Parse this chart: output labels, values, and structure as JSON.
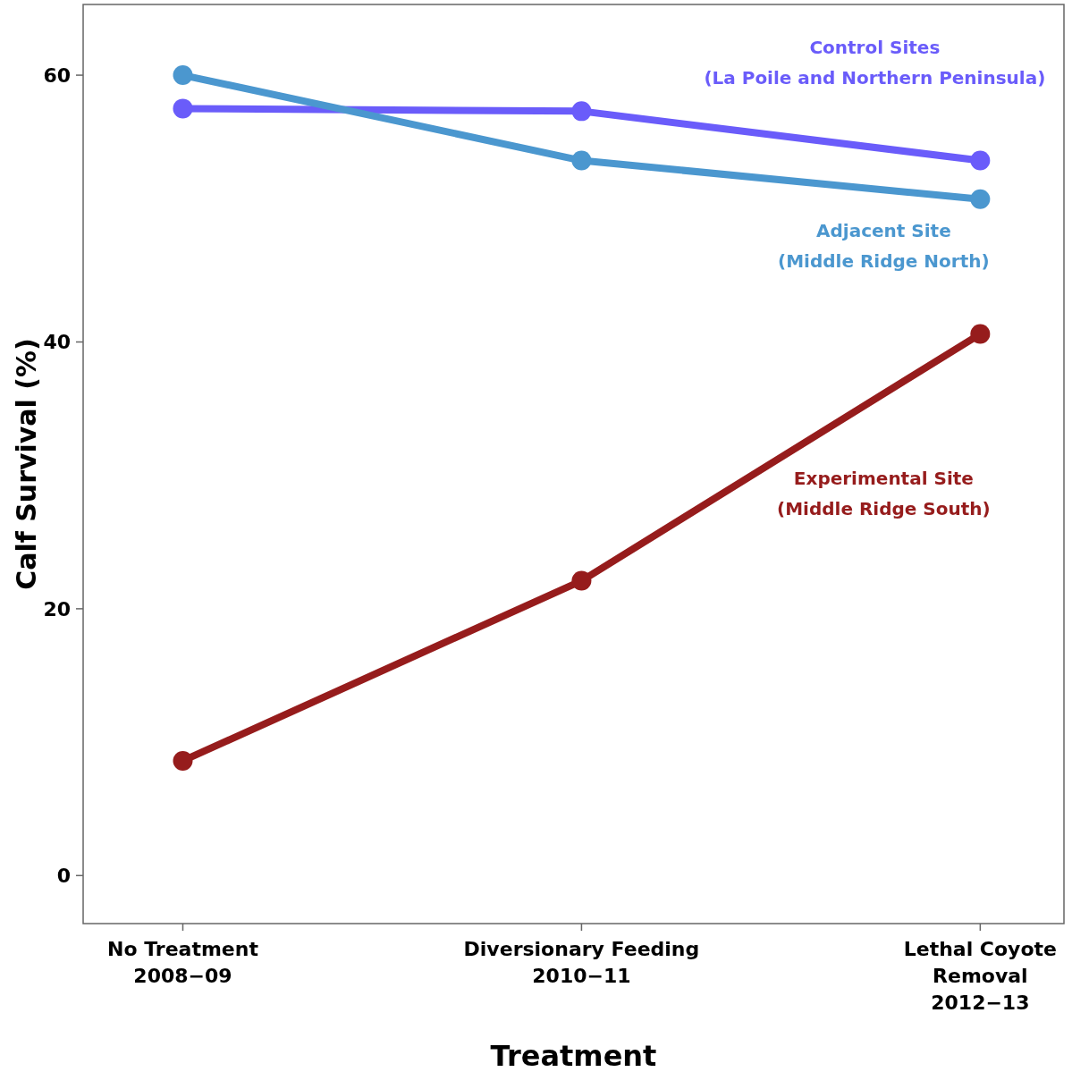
{
  "chart_data": {
    "type": "line",
    "xlabel": "Treatment",
    "ylabel": "Calf Survival (%)",
    "categories": [
      "No Treatment\n2008−09",
      "Diversionary Feeding\n2010−11",
      "Lethal Coyote\nRemoval\n2012−13"
    ],
    "ylim": [
      -3.6,
      65.3
    ],
    "yticks": [
      0,
      20,
      40,
      60
    ],
    "grid": false,
    "marker": "circle",
    "line_style": "solid",
    "series": [
      {
        "name": "Control Sites\n(La Poile and Northern Peninsula)",
        "color": "#6a5cfa",
        "values": [
          57.5,
          57.3,
          53.6
        ]
      },
      {
        "name": "Adjacent Site\n(Middle Ridge North)",
        "color": "#4b97cf",
        "values": [
          60,
          53.6,
          50.7
        ]
      },
      {
        "name": "Experimental Site\n(Middle Ridge South)",
        "color": "#961c1c",
        "values": [
          8.6,
          22.1,
          40.6
        ]
      }
    ]
  }
}
